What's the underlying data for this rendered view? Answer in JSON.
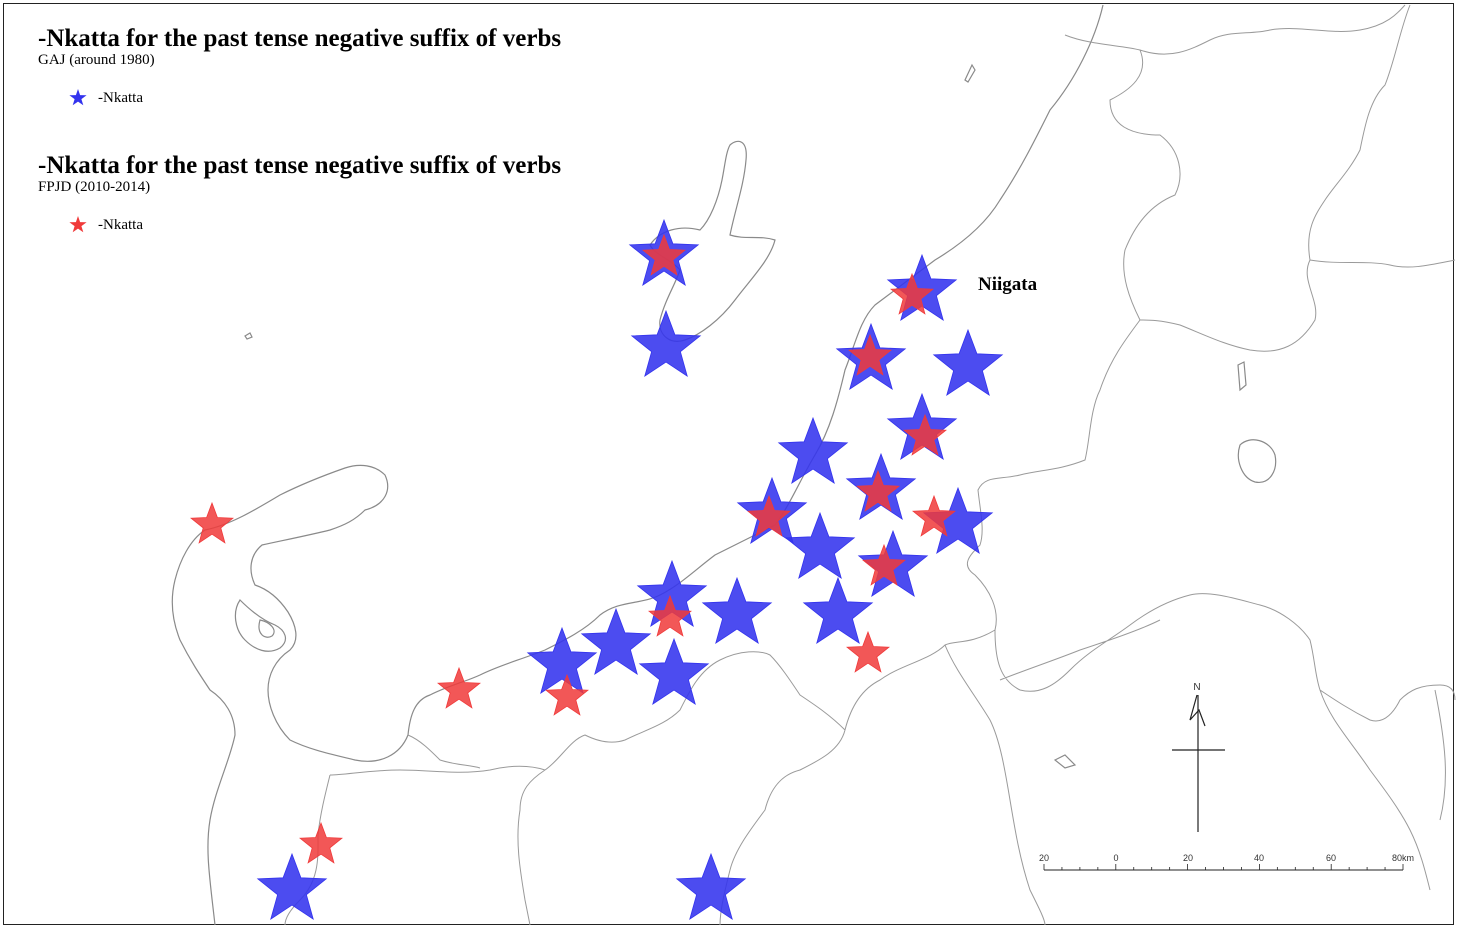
{
  "legend_groups": [
    {
      "title": "-Nkatta for the past tense negative suffix of verbs",
      "subtitle": "GAJ (around 1980)",
      "item_label": "-Nkatta",
      "color": "#3333ee"
    },
    {
      "title": "-Nkatta for the past tense negative suffix of verbs",
      "subtitle": "FPJD (2010-2014)",
      "item_label": "-Nkatta",
      "color": "#f03a3a"
    }
  ],
  "city_label": "Niigata",
  "north_label": "N",
  "scale_labels": [
    "20",
    "0",
    "20",
    "40",
    "60",
    "80km"
  ]
}
